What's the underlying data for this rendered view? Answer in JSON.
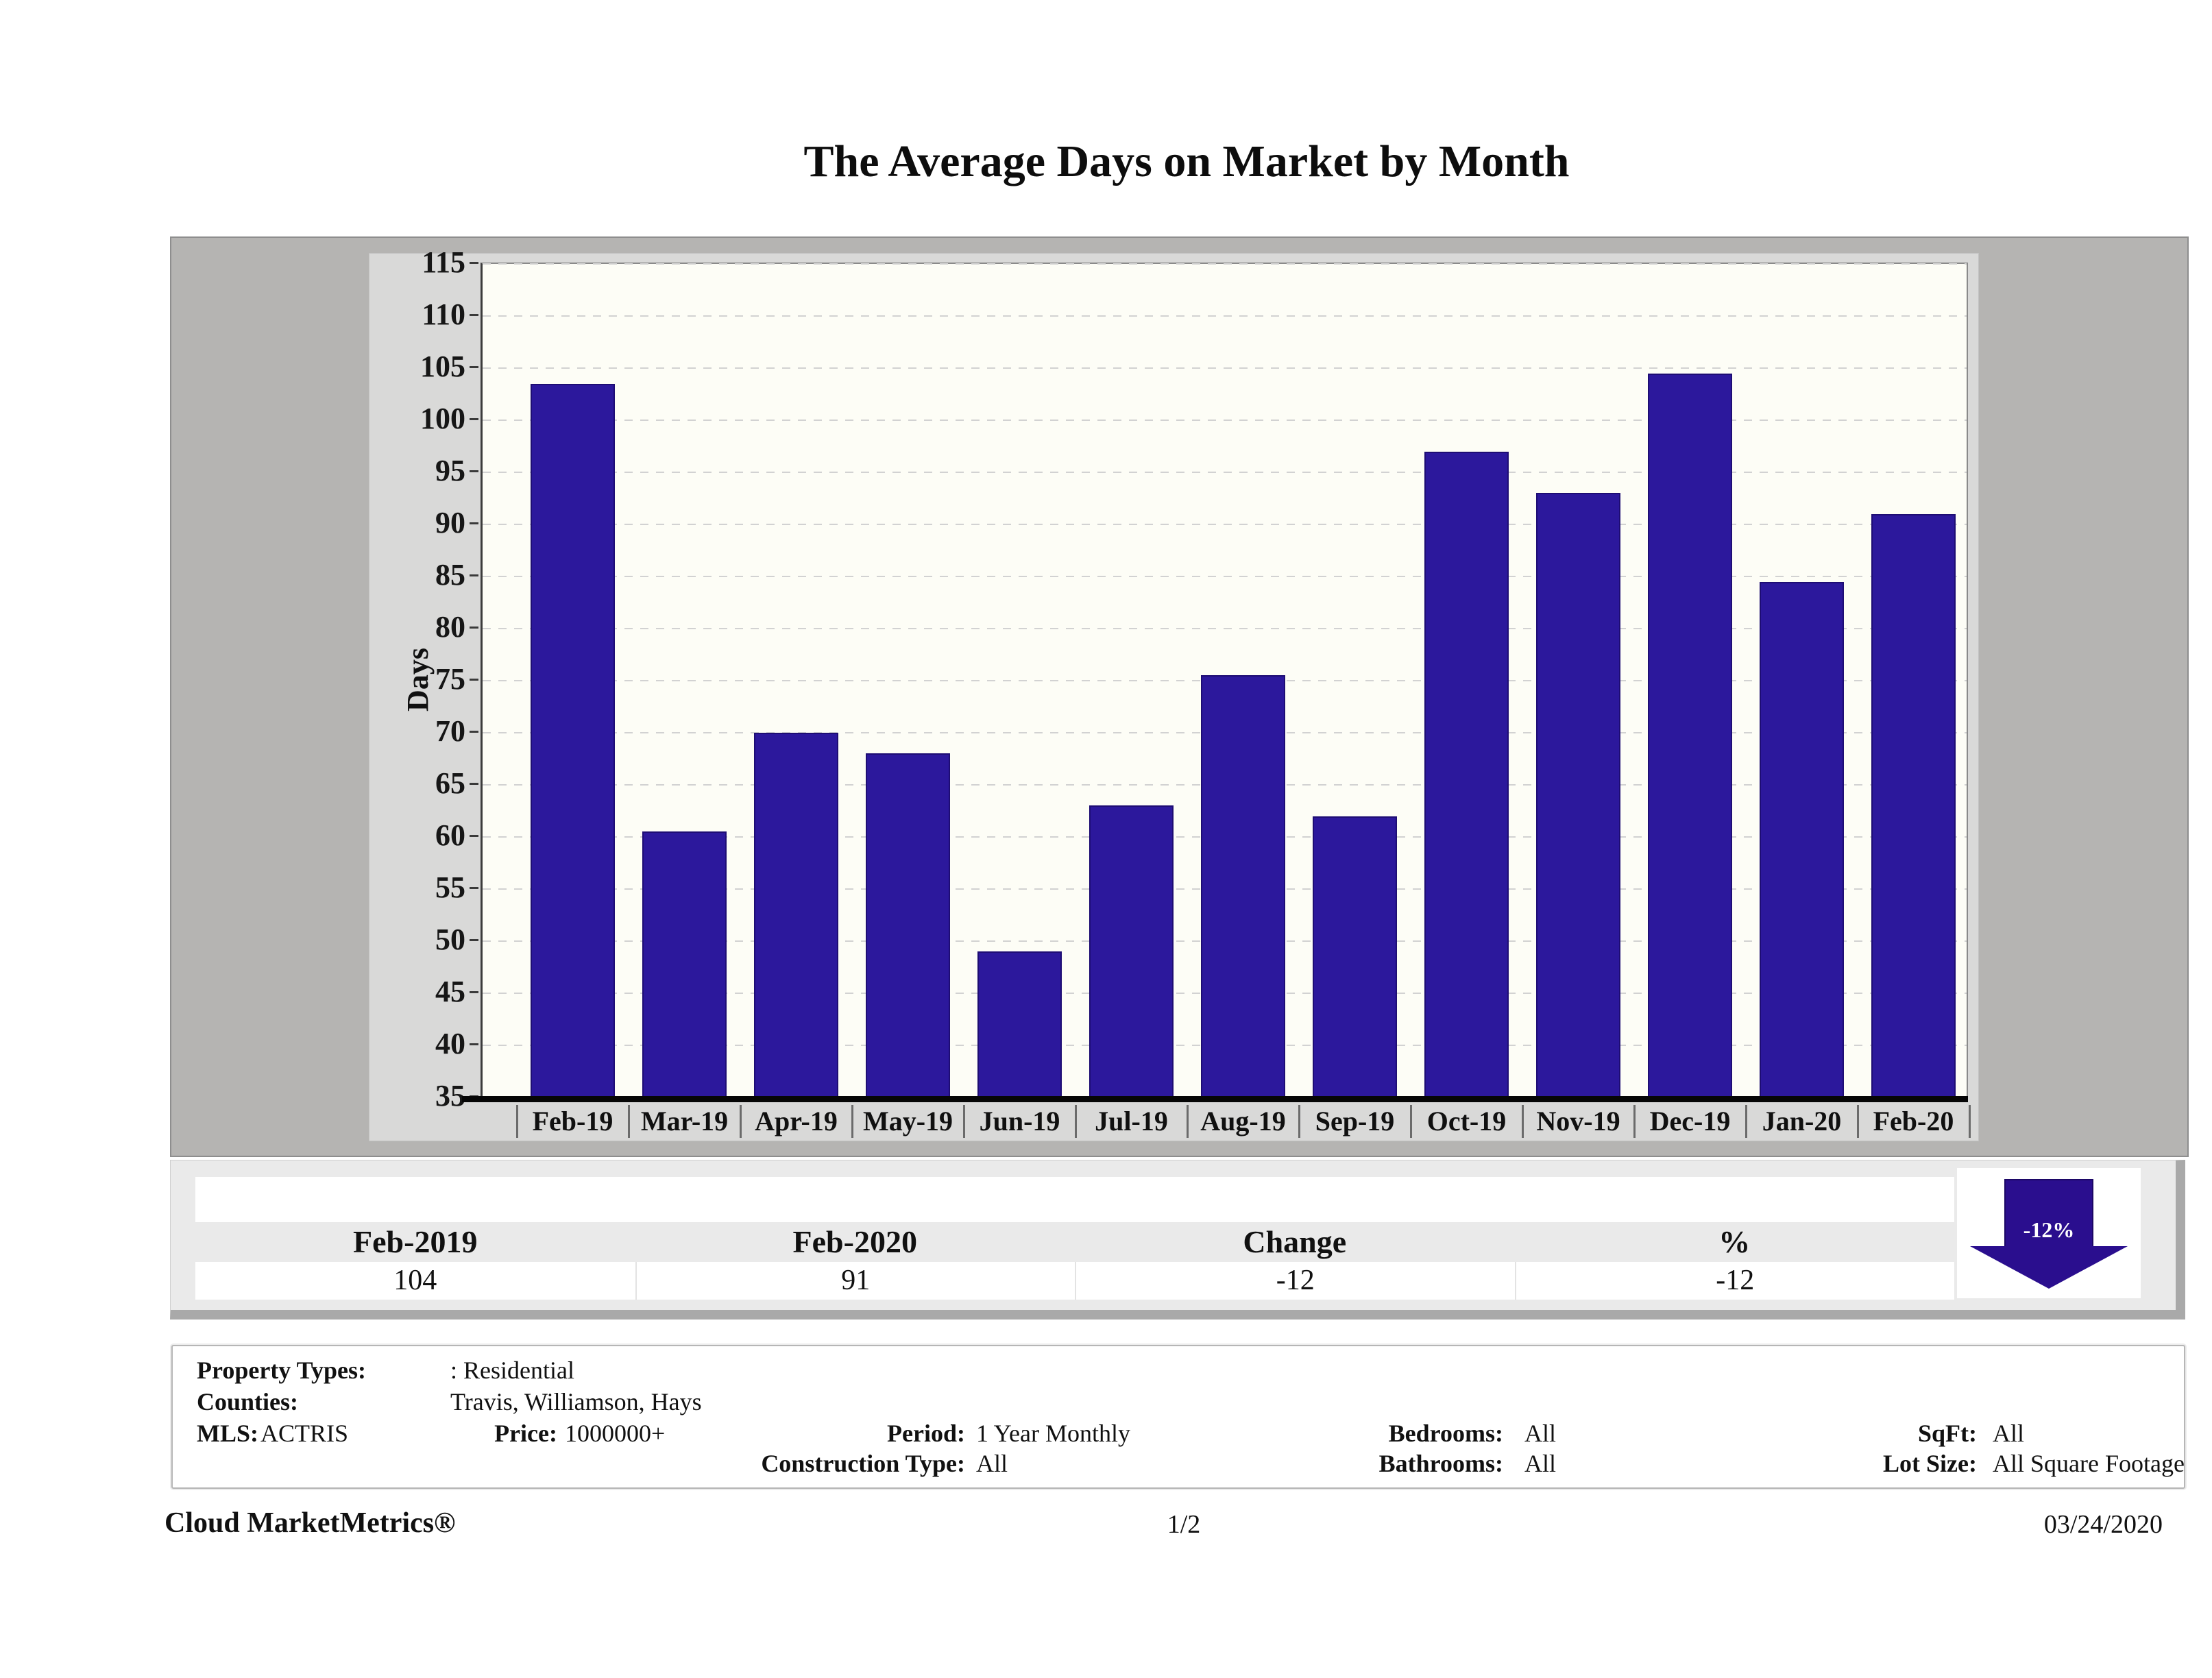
{
  "title": "The Average Days on Market by Month",
  "chart_data": {
    "type": "bar",
    "title": "The Average Days on Market by Month",
    "categories": [
      "Feb-19",
      "Mar-19",
      "Apr-19",
      "May-19",
      "Jun-19",
      "Jul-19",
      "Aug-19",
      "Sep-19",
      "Oct-19",
      "Nov-19",
      "Dec-19",
      "Jan-20",
      "Feb-20"
    ],
    "values": [
      103.5,
      60.5,
      70,
      68,
      49,
      63,
      75.5,
      62,
      97,
      93,
      104.5,
      84.5,
      91
    ],
    "xlabel": "",
    "ylabel": "Days",
    "ylim": [
      35,
      115
    ],
    "ytick_step": 5,
    "grid": true,
    "legend": false,
    "bar_color": "#2c189c"
  },
  "summary": {
    "headers": [
      "Feb-2019",
      "Feb-2020",
      "Change",
      "%"
    ],
    "values": [
      "104",
      "91",
      "-12",
      "-12"
    ],
    "arrow_label": "-12%",
    "arrow_direction": "down",
    "arrow_color": "#2a0e8e"
  },
  "filters": {
    "property_types_label": "Property Types:",
    "property_types_value": ": Residential",
    "counties_label": "Counties:",
    "counties_value": "Travis, Williamson, Hays",
    "mls_label": "MLS:",
    "mls_value": "ACTRIS",
    "price_label": "Price:",
    "price_value": "1000000+",
    "period_label": "Period:",
    "period_value": "1 Year Monthly",
    "construction_type_label": "Construction Type:",
    "construction_type_value": "All",
    "bedrooms_label": "Bedrooms:",
    "bedrooms_value": "All",
    "bathrooms_label": "Bathrooms:",
    "bathrooms_value": "All",
    "sqft_label": "SqFt:",
    "sqft_value": "All",
    "lot_size_label": "Lot Size:",
    "lot_size_value": "All Square Footage"
  },
  "footer": {
    "brand": "Cloud MarketMetrics®",
    "page": "1/2",
    "date": "03/24/2020"
  }
}
